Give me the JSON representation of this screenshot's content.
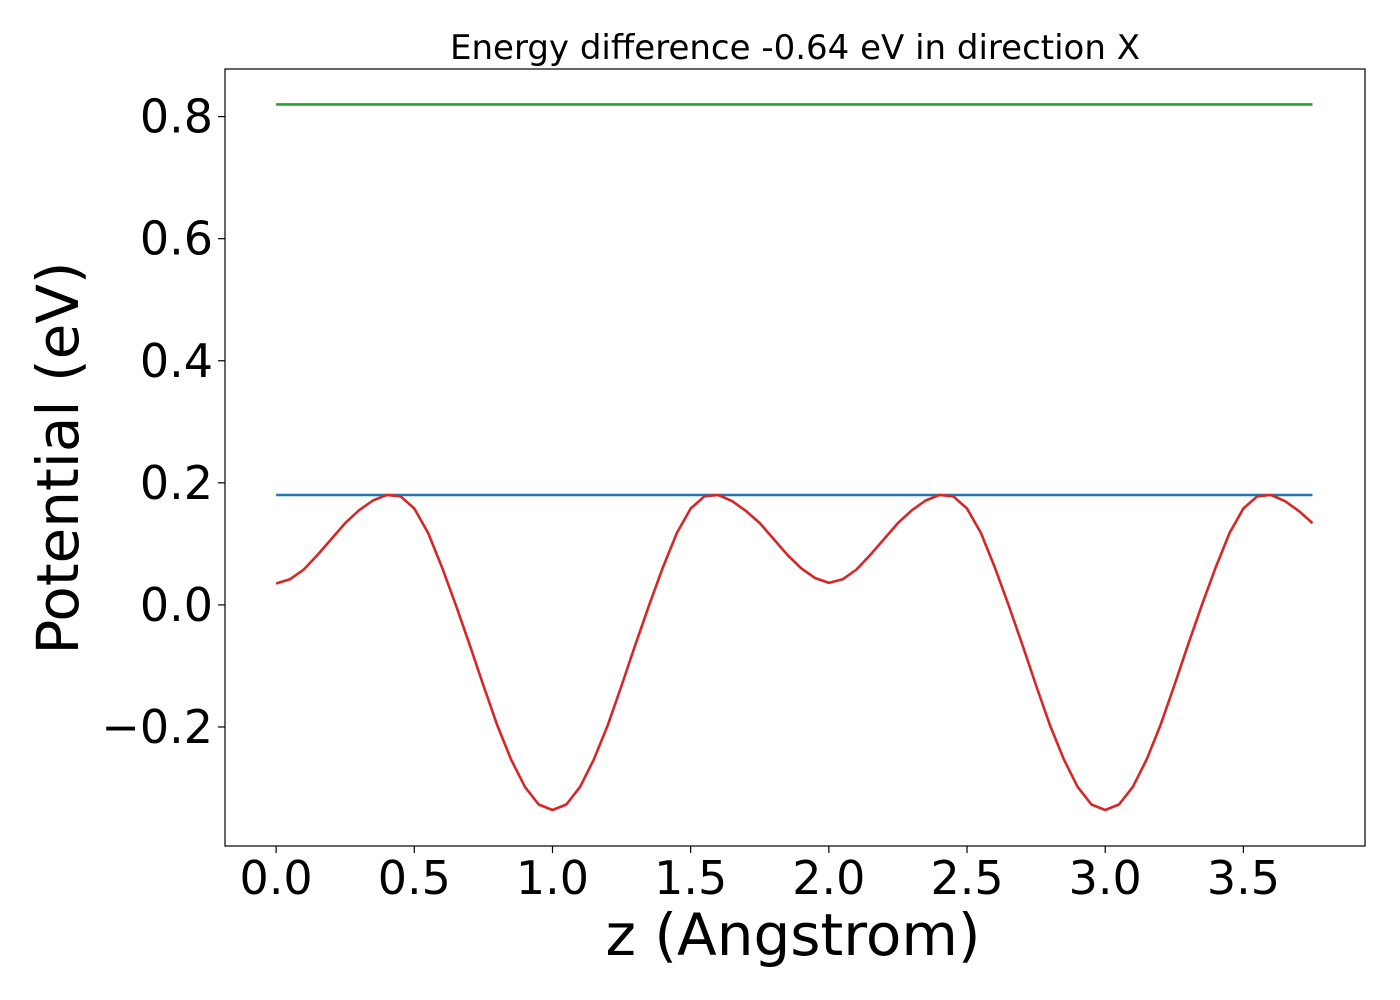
{
  "chart_data": {
    "type": "line",
    "title": "Energy difference -0.64 eV in direction X",
    "xlabel": "z (Angstrom)",
    "ylabel": "Potential (eV)",
    "xlim": [
      -0.185,
      3.94
    ],
    "ylim": [
      -0.395,
      0.878
    ],
    "xticks": [
      0.0,
      0.5,
      1.0,
      1.5,
      2.0,
      2.5,
      3.0,
      3.5
    ],
    "xtick_labels": [
      "0.0",
      "0.5",
      "1.0",
      "1.5",
      "2.0",
      "2.5",
      "3.0",
      "3.5"
    ],
    "yticks": [
      -0.2,
      0.0,
      0.2,
      0.4,
      0.6,
      0.8
    ],
    "ytick_labels": [
      "−0.2",
      "0.0",
      "0.2",
      "0.4",
      "0.6",
      "0.8"
    ],
    "grid": false,
    "legend": "none",
    "series": [
      {
        "color": "#2ca02c",
        "x": [
          0.0,
          3.75
        ],
        "y": [
          0.82,
          0.82
        ]
      },
      {
        "color": "#1f77b4",
        "x": [
          0.0,
          3.75
        ],
        "y": [
          0.18,
          0.18
        ]
      },
      {
        "color": "#d62728",
        "x": [
          0.0,
          0.05,
          0.1,
          0.15,
          0.2,
          0.25,
          0.3,
          0.35,
          0.4,
          0.45,
          0.5,
          0.55,
          0.6,
          0.65,
          0.7,
          0.75,
          0.8,
          0.85,
          0.9,
          0.95,
          1.0,
          1.05,
          1.1,
          1.15,
          1.2,
          1.25,
          1.3,
          1.35,
          1.4,
          1.45,
          1.5,
          1.55,
          1.6,
          1.65,
          1.7,
          1.75,
          1.8,
          1.85,
          1.9,
          1.95,
          2.0,
          2.05,
          2.1,
          2.15,
          2.2,
          2.25,
          2.3,
          2.35,
          2.4,
          2.45,
          2.5,
          2.55,
          2.6,
          2.65,
          2.7,
          2.75,
          2.8,
          2.85,
          2.9,
          2.95,
          3.0,
          3.05,
          3.1,
          3.15,
          3.2,
          3.25,
          3.3,
          3.35,
          3.4,
          3.45,
          3.5,
          3.55,
          3.6,
          3.65,
          3.7,
          3.75
        ],
        "y": [
          0.035,
          0.042,
          0.058,
          0.082,
          0.108,
          0.134,
          0.155,
          0.171,
          0.18,
          0.178,
          0.158,
          0.118,
          0.062,
          0.0,
          -0.065,
          -0.132,
          -0.197,
          -0.253,
          -0.298,
          -0.327,
          -0.336,
          -0.327,
          -0.298,
          -0.253,
          -0.197,
          -0.132,
          -0.065,
          0.0,
          0.062,
          0.118,
          0.158,
          0.178,
          0.18,
          0.17,
          0.154,
          0.134,
          0.108,
          0.082,
          0.06,
          0.044,
          0.036,
          0.042,
          0.058,
          0.082,
          0.108,
          0.134,
          0.155,
          0.171,
          0.18,
          0.178,
          0.158,
          0.118,
          0.062,
          0.0,
          -0.065,
          -0.132,
          -0.197,
          -0.253,
          -0.298,
          -0.327,
          -0.336,
          -0.327,
          -0.298,
          -0.253,
          -0.197,
          -0.132,
          -0.065,
          0.0,
          0.062,
          0.118,
          0.158,
          0.178,
          0.18,
          0.17,
          0.154,
          0.134
        ]
      }
    ]
  }
}
